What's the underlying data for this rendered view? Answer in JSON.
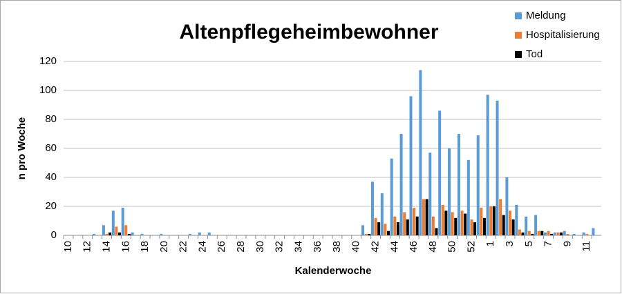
{
  "chart_data": {
    "type": "bar",
    "title": "Altenpflegeheimbewohner",
    "xlabel": "Kalenderwoche",
    "ylabel": "n pro Woche",
    "categories": [
      "10",
      null,
      "12",
      null,
      "14",
      null,
      "16",
      null,
      "18",
      null,
      "20",
      null,
      "22",
      null,
      "24",
      null,
      "26",
      null,
      "28",
      null,
      "30",
      null,
      "32",
      null,
      "34",
      null,
      "36",
      null,
      "38",
      null,
      "40",
      null,
      "42",
      null,
      "44",
      null,
      "46",
      null,
      "48",
      null,
      "50",
      null,
      "52",
      null,
      "1",
      null,
      "3",
      null,
      "5",
      null,
      "7",
      null,
      "9",
      null,
      "11",
      null
    ],
    "series": [
      {
        "name": "Meldung",
        "color": "#5b9bd5",
        "values": [
          0,
          0,
          0,
          1,
          7,
          17,
          19,
          2,
          1,
          0,
          1,
          0,
          0,
          1,
          2,
          2,
          0,
          0,
          0,
          0,
          0,
          0,
          0,
          0,
          0,
          0,
          0,
          0,
          0,
          0,
          0,
          7,
          37,
          29,
          53,
          70,
          96,
          114,
          57,
          86,
          60,
          70,
          52,
          69,
          97,
          93,
          40,
          21,
          13,
          14,
          2,
          2,
          3,
          1,
          2,
          5
        ]
      },
      {
        "name": "Hospitalisierung",
        "color": "#ed7d31",
        "values": [
          0,
          0,
          0,
          0,
          1,
          6,
          7,
          0,
          0,
          0,
          0,
          0,
          0,
          0,
          0,
          0,
          0,
          0,
          0,
          0,
          0,
          0,
          0,
          0,
          0,
          0,
          0,
          0,
          0,
          0,
          0,
          1,
          12,
          8,
          13,
          16,
          19,
          25,
          13,
          21,
          16,
          17,
          11,
          19,
          20,
          25,
          17,
          4,
          3,
          3,
          3,
          2,
          1,
          0,
          1,
          0
        ]
      },
      {
        "name": "Tod",
        "color": "#000000",
        "values": [
          0,
          0,
          0,
          0,
          2,
          2,
          1,
          0,
          0,
          0,
          0,
          0,
          0,
          0,
          0,
          0,
          0,
          0,
          0,
          0,
          0,
          0,
          0,
          0,
          0,
          0,
          0,
          0,
          0,
          0,
          0,
          1,
          9,
          3,
          9,
          11,
          13,
          25,
          5,
          17,
          12,
          15,
          9,
          12,
          20,
          14,
          11,
          2,
          1,
          3,
          1,
          2,
          0,
          0,
          0,
          0
        ]
      }
    ],
    "ylim": [
      0,
      120
    ],
    "yticks": [
      0,
      20,
      40,
      60,
      80,
      100,
      120
    ],
    "grid": true,
    "legend": "top-right"
  }
}
